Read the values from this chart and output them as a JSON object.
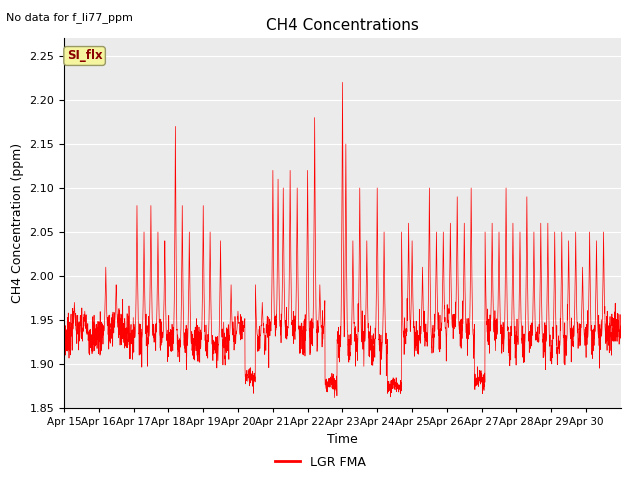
{
  "title": "CH4 Concentrations",
  "xlabel": "Time",
  "ylabel": "CH4 Concentration (ppm)",
  "top_left_text": "No data for f_li77_ppm",
  "annotation_box_text": "SI_flx",
  "legend_label": "LGR FMA",
  "line_color": "#ff0000",
  "ylim": [
    1.85,
    2.27
  ],
  "yticks": [
    1.85,
    1.9,
    1.95,
    2.0,
    2.05,
    2.1,
    2.15,
    2.2,
    2.25
  ],
  "x_tick_labels": [
    "Apr 15",
    "Apr 16",
    "Apr 17",
    "Apr 18",
    "Apr 19",
    "Apr 20",
    "Apr 21",
    "Apr 22",
    "Apr 23",
    "Apr 24",
    "Apr 25",
    "Apr 26",
    "Apr 27",
    "Apr 28",
    "Apr 29",
    "Apr 30"
  ],
  "n_points": 3000,
  "seed": 7
}
